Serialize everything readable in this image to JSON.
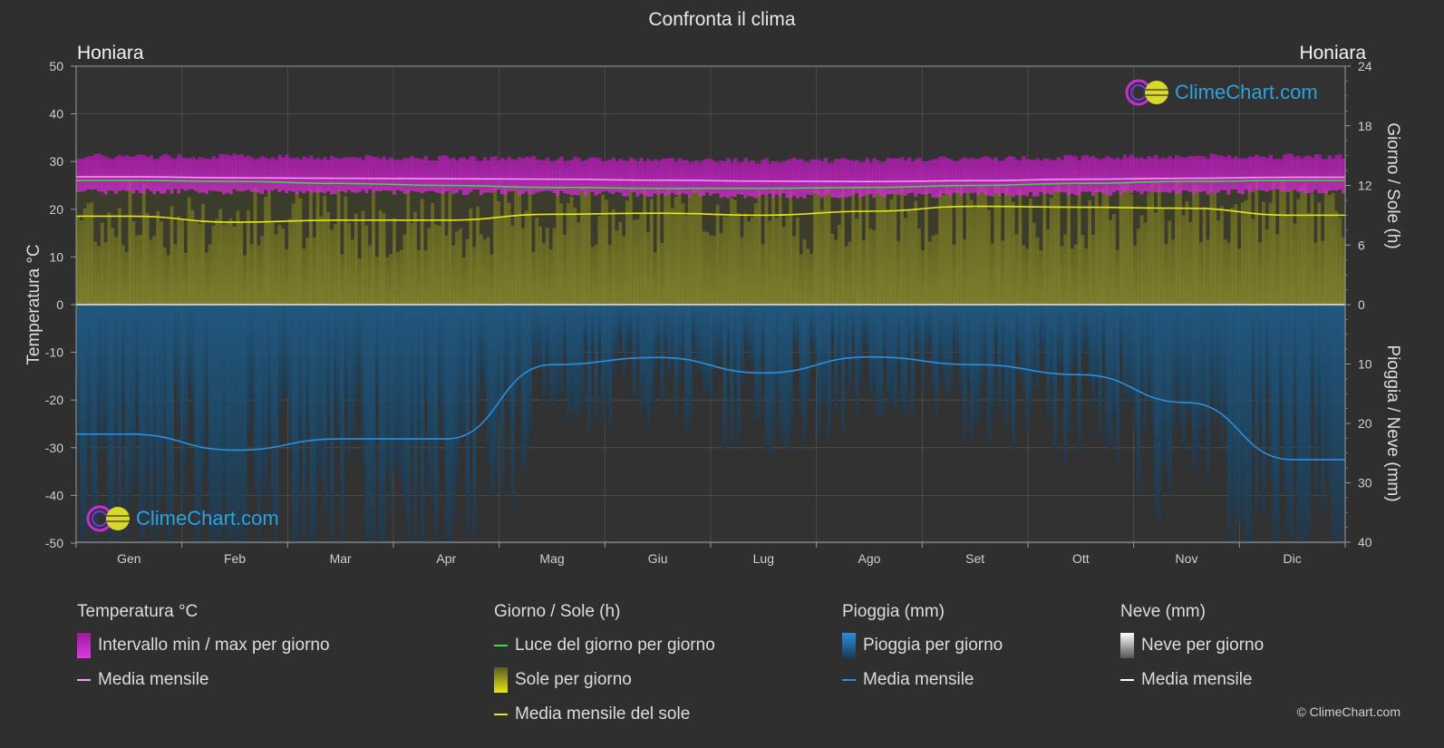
{
  "header": {
    "title": "Confronta il clima",
    "location_left": "Honiara",
    "location_right": "Honiara"
  },
  "brand": {
    "text": "ClimeChart.com",
    "copyright": "© ClimeChart.com"
  },
  "colors": {
    "background": "#2f2f2f",
    "temp_range": "#d21ed2",
    "temp_mean": "#ff9cff",
    "daylight": "#3ddc3d",
    "sunshine_mean": "#e6e619",
    "sunshine_fill": "#8c8c2a",
    "rain": "#1f6fa8",
    "rain_mean": "#2a8fe0",
    "snow_mean": "#ffffff"
  },
  "legend": {
    "temperature": {
      "title": "Temperatura °C",
      "items": [
        "Intervallo min / max per giorno",
        "Media mensile"
      ]
    },
    "sun": {
      "title": "Giorno / Sole (h)",
      "items": [
        "Luce del giorno per giorno",
        "Sole per giorno",
        "Media mensile del sole"
      ]
    },
    "rain": {
      "title": "Pioggia (mm)",
      "items": [
        "Pioggia per giorno",
        "Media mensile"
      ]
    },
    "snow": {
      "title": "Neve (mm)",
      "items": [
        "Neve per giorno",
        "Media mensile"
      ]
    }
  },
  "chart_data": {
    "type": "line",
    "title": "Confronta il clima",
    "categories": [
      "Gen",
      "Feb",
      "Mar",
      "Apr",
      "Mag",
      "Giu",
      "Lug",
      "Ago",
      "Set",
      "Ott",
      "Nov",
      "Dic"
    ],
    "axes": {
      "left": {
        "label": "Temperatura °C",
        "min": -50,
        "max": 50,
        "ticks": [
          50,
          40,
          30,
          20,
          10,
          0,
          -10,
          -20,
          -30,
          -40,
          -50
        ]
      },
      "right_top": {
        "label": "Giorno / Sole (h)",
        "min": 0,
        "max": 24,
        "ticks": [
          24,
          18,
          12,
          6,
          0
        ]
      },
      "right_bottom": {
        "label": "Pioggia / Neve (mm)",
        "min": 0,
        "max": 40,
        "ticks": [
          0,
          10,
          20,
          30,
          40
        ]
      }
    },
    "grid": true,
    "series": [
      {
        "name": "Intervallo min / max per giorno",
        "unit": "°C",
        "min": [
          24.3,
          24.3,
          24.2,
          24.2,
          24.0,
          23.7,
          23.4,
          23.4,
          23.6,
          23.9,
          24.1,
          24.3
        ],
        "max": [
          30.5,
          30.5,
          30.3,
          30.2,
          30.0,
          29.8,
          29.6,
          29.7,
          30.0,
          30.3,
          30.5,
          30.5
        ]
      },
      {
        "name": "Media mensile",
        "unit": "°C",
        "values": [
          26.8,
          26.6,
          26.5,
          26.4,
          26.3,
          26.1,
          25.9,
          25.8,
          26.0,
          26.3,
          26.5,
          26.7
        ]
      },
      {
        "name": "Luce del giorno per giorno",
        "unit": "h",
        "values": [
          12.5,
          12.4,
          12.2,
          12.0,
          11.8,
          11.7,
          11.7,
          11.8,
          12.0,
          12.2,
          12.4,
          12.5
        ]
      },
      {
        "name": "Media mensile del sole",
        "unit": "h",
        "values": [
          8.9,
          8.3,
          8.5,
          8.5,
          9.1,
          9.2,
          9.0,
          9.4,
          9.9,
          9.8,
          9.7,
          9.0
        ]
      },
      {
        "name": "Media mensile",
        "unit": "mm",
        "values": [
          21.8,
          24.5,
          22.6,
          22.6,
          10.1,
          8.9,
          11.5,
          8.8,
          10.1,
          11.8,
          16.5,
          26.1
        ]
      }
    ]
  }
}
